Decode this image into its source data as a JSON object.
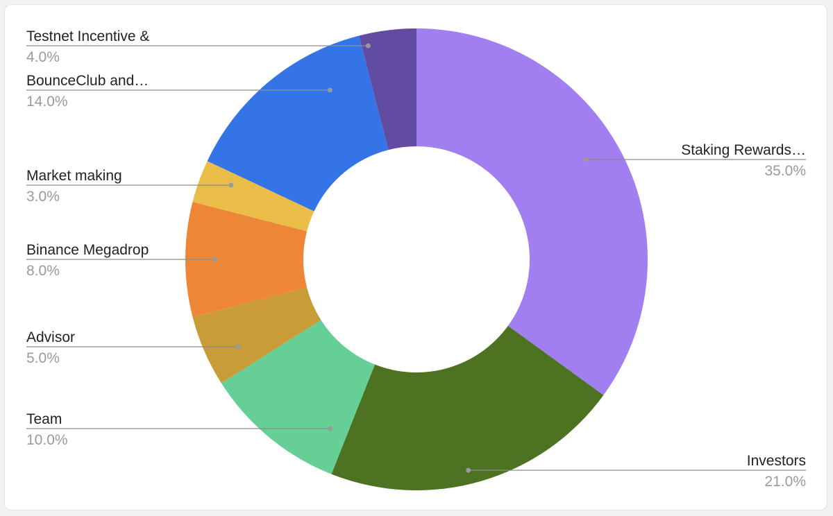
{
  "chart_data": {
    "type": "pie",
    "donut": true,
    "title": "",
    "legend": "none",
    "slices": [
      {
        "label": "Staking Rewards…",
        "value": 35.0,
        "pct_label": "35.0%",
        "color": "#a27ff0"
      },
      {
        "label": "Investors",
        "value": 21.0,
        "pct_label": "21.0%",
        "color": "#4d7322"
      },
      {
        "label": "Team",
        "value": 10.0,
        "pct_label": "10.0%",
        "color": "#66cf96"
      },
      {
        "label": "Advisor",
        "value": 5.0,
        "pct_label": "5.0%",
        "color": "#c99c37"
      },
      {
        "label": "Binance Megadrop",
        "value": 8.0,
        "pct_label": "8.0%",
        "color": "#ee8638"
      },
      {
        "label": "Market making",
        "value": 3.0,
        "pct_label": "3.0%",
        "color": "#e9bd48"
      },
      {
        "label": "BounceClub and…",
        "value": 14.0,
        "pct_label": "14.0%",
        "color": "#3474e6"
      },
      {
        "label": "Testnet Incentive &",
        "value": 4.0,
        "pct_label": "4.0%",
        "color": "#624ca1"
      }
    ]
  }
}
